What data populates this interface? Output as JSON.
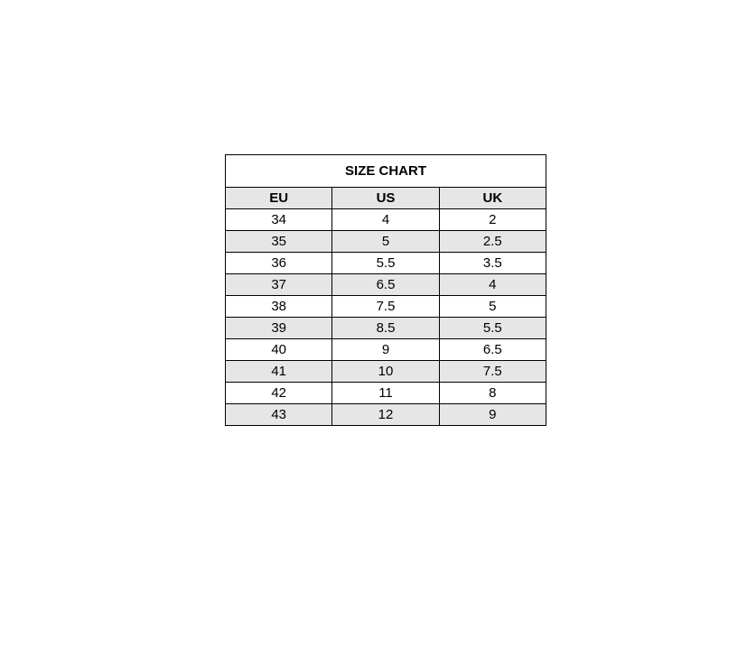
{
  "colors": {
    "border": "#000000",
    "row_alt_bg": "#e7e6e6",
    "row_bg": "#ffffff",
    "text": "#000000"
  },
  "chart_data": {
    "type": "table",
    "title": "SIZE CHART",
    "columns": [
      "EU",
      "US",
      "UK"
    ],
    "rows": [
      [
        "34",
        "4",
        "2"
      ],
      [
        "35",
        "5",
        "2.5"
      ],
      [
        "36",
        "5.5",
        "3.5"
      ],
      [
        "37",
        "6.5",
        "4"
      ],
      [
        "38",
        "7.5",
        "5"
      ],
      [
        "39",
        "8.5",
        "5.5"
      ],
      [
        "40",
        "9",
        "6.5"
      ],
      [
        "41",
        "10",
        "7.5"
      ],
      [
        "42",
        "11",
        "8"
      ],
      [
        "43",
        "12",
        "9"
      ]
    ]
  }
}
